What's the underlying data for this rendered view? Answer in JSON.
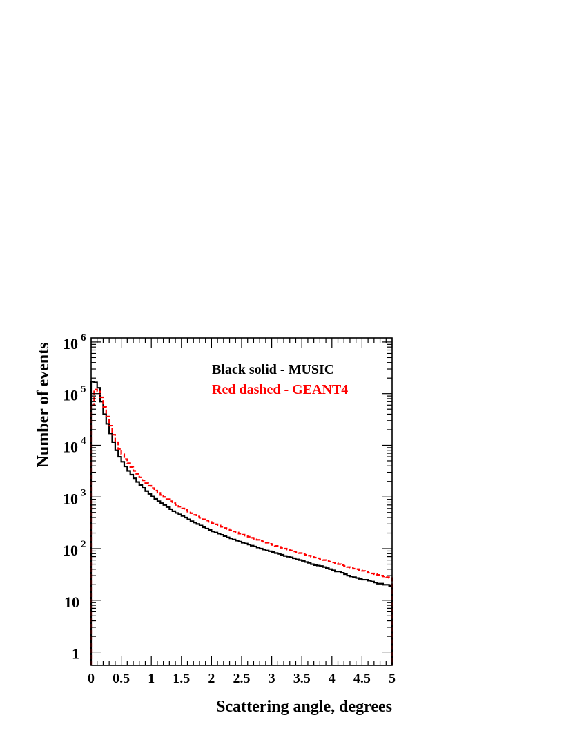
{
  "chart_data": {
    "type": "line",
    "title": "",
    "xlabel": "Scattering angle, degrees",
    "ylabel": "Number of events",
    "xlim": [
      0,
      5
    ],
    "ylim": [
      0.55,
      1200000
    ],
    "yscale": "log",
    "x_ticks": [
      "0",
      "0.5",
      "1",
      "1.5",
      "2",
      "2.5",
      "3",
      "3.5",
      "4",
      "4.5",
      "5"
    ],
    "y_ticks": [
      {
        "value": 1,
        "base": "1",
        "exp": ""
      },
      {
        "value": 10,
        "base": "10",
        "exp": ""
      },
      {
        "value": 100,
        "base": "10",
        "exp": "2"
      },
      {
        "value": 1000,
        "base": "10",
        "exp": "3"
      },
      {
        "value": 10000,
        "base": "10",
        "exp": "4"
      },
      {
        "value": 100000,
        "base": "10",
        "exp": "5"
      },
      {
        "value": 1000000,
        "base": "10",
        "exp": "6"
      }
    ],
    "legend": {
      "placement": "top-right"
    },
    "series": [
      {
        "name": "Black solid - MUSIC",
        "color": "#000000",
        "style": "solid-step",
        "bin_width": 0.05,
        "values": [
          170000,
          165000,
          130000,
          70000,
          40000,
          26000,
          17000,
          11500,
          8000,
          6000,
          4800,
          3900,
          3200,
          2700,
          2300,
          1950,
          1700,
          1500,
          1300,
          1150,
          1020,
          920,
          830,
          760,
          700,
          640,
          580,
          530,
          490,
          460,
          430,
          400,
          370,
          340,
          320,
          300,
          280,
          260,
          245,
          230,
          215,
          205,
          195,
          185,
          175,
          165,
          158,
          150,
          143,
          137,
          130,
          125,
          120,
          114,
          110,
          105,
          100,
          96,
          92,
          89,
          86,
          82,
          79,
          76,
          72,
          70,
          68,
          65,
          62,
          60,
          58,
          55,
          53,
          50,
          48,
          47,
          46,
          44,
          42,
          40,
          38,
          36,
          36,
          34,
          32,
          30,
          29,
          28,
          27,
          26,
          25,
          25,
          24,
          23,
          22,
          21,
          21,
          20,
          20,
          19
        ]
      },
      {
        "name": "Red dashed - GEANT4",
        "color": "#ff0000",
        "style": "dashed-step",
        "bin_width": 0.05,
        "values": [
          60000,
          120000,
          110000,
          85000,
          55000,
          36000,
          24000,
          16000,
          11500,
          8500,
          6700,
          5400,
          4500,
          3800,
          3200,
          2800,
          2400,
          2100,
          1850,
          1650,
          1480,
          1330,
          1200,
          1090,
          1000,
          910,
          830,
          760,
          700,
          650,
          600,
          560,
          520,
          485,
          450,
          420,
          395,
          370,
          350,
          330,
          310,
          295,
          280,
          265,
          250,
          238,
          226,
          215,
          205,
          195,
          186,
          178,
          170,
          162,
          155,
          148,
          142,
          136,
          130,
          124,
          118,
          113,
          108,
          104,
          100,
          96,
          92,
          88,
          85,
          82,
          79,
          76,
          73,
          70,
          67,
          65,
          62,
          60,
          58,
          56,
          54,
          52,
          50,
          48,
          46,
          44,
          43,
          41,
          40,
          38,
          37,
          36,
          34,
          33,
          32,
          31,
          30,
          29,
          28,
          27
        ]
      }
    ]
  }
}
